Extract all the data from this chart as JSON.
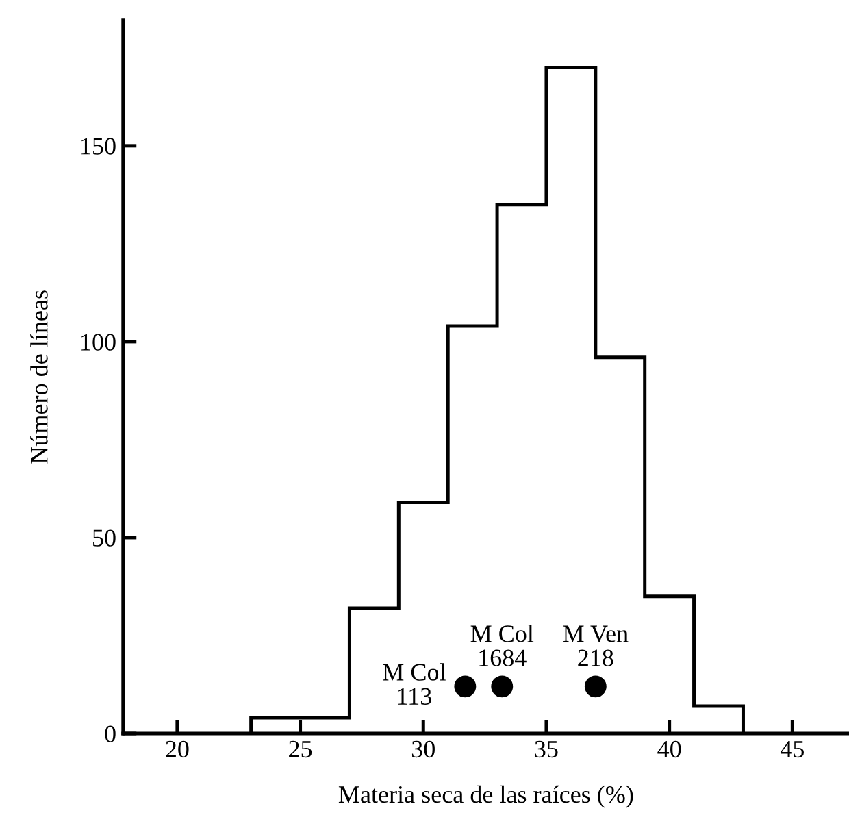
{
  "chart_data": {
    "type": "histogram",
    "xlabel": "Materia seca de las raíces (%)",
    "ylabel": "Número de líneas",
    "bins": [
      23,
      27,
      29,
      31,
      33,
      35,
      37,
      39,
      41,
      43
    ],
    "values": [
      4,
      32,
      59,
      104,
      135,
      170,
      96,
      35,
      7
    ],
    "color": "#000000",
    "series": [
      {
        "type": "scatter",
        "x": [
          31.7,
          33.2,
          37.0
        ],
        "values": [
          12,
          12,
          12
        ],
        "color": "#000000",
        "marker": "circle"
      }
    ],
    "annotations": [
      {
        "text": "M Col\n113",
        "x": 31.7,
        "y": 12
      },
      {
        "text": "M Col\n1684",
        "x": 33.2,
        "y": 12
      },
      {
        "text": "M Ven\n218",
        "x": 37.0,
        "y": 12
      }
    ],
    "xlim": [
      17.8,
      47.3
    ],
    "ylim": [
      0,
      182
    ],
    "xticks": [
      20,
      25,
      30,
      35,
      40,
      45
    ],
    "yticks": [
      0,
      50,
      100,
      150
    ],
    "grid": false,
    "legend": false
  }
}
